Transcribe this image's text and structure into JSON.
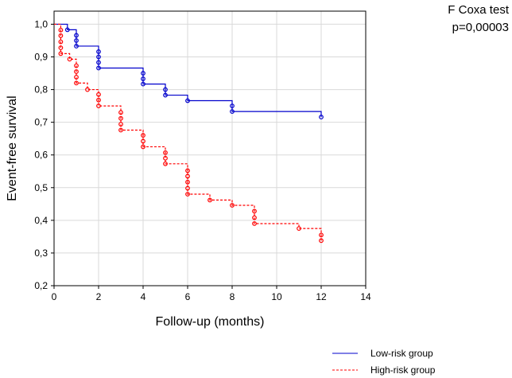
{
  "chart_data": {
    "type": "line",
    "title": "",
    "xlabel": "Follow-up (months)",
    "ylabel": "Event-free survival",
    "xlim": [
      0,
      14
    ],
    "ylim": [
      0.2,
      1.04
    ],
    "xticks": [
      0,
      2,
      4,
      6,
      8,
      10,
      12,
      14
    ],
    "yticks": [
      0.2,
      0.3,
      0.4,
      0.5,
      0.6,
      0.7,
      0.8,
      0.9,
      1.0
    ],
    "ytick_labels": [
      "0,2",
      "0,3",
      "0,4",
      "0,5",
      "0,6",
      "0,7",
      "0,8",
      "0,9",
      "1,0"
    ],
    "grid": true,
    "legend_position": "bottom-right",
    "annotation": {
      "test_name": "F Coxa test",
      "p_value": "p=0,00003"
    },
    "series": [
      {
        "name": "Low-risk group",
        "color": "#0000cc",
        "style": "solid",
        "steps": [
          [
            0,
            1.0
          ],
          [
            0.6,
            0.983
          ],
          [
            1.0,
            0.933
          ],
          [
            2.0,
            0.866
          ],
          [
            4.0,
            0.817
          ],
          [
            5.0,
            0.783
          ],
          [
            6.0,
            0.766
          ],
          [
            8.0,
            0.733
          ],
          [
            12.0,
            0.716
          ]
        ],
        "censored": [
          [
            0.6,
            0.983
          ],
          [
            1.0,
            0.966
          ],
          [
            1.0,
            0.95
          ],
          [
            1.0,
            0.933
          ],
          [
            2.0,
            0.916
          ],
          [
            2.0,
            0.9
          ],
          [
            2.0,
            0.883
          ],
          [
            2.0,
            0.866
          ],
          [
            4.0,
            0.85
          ],
          [
            4.0,
            0.833
          ],
          [
            4.0,
            0.817
          ],
          [
            5.0,
            0.8
          ],
          [
            5.0,
            0.783
          ],
          [
            6.0,
            0.766
          ],
          [
            8.0,
            0.75
          ],
          [
            8.0,
            0.733
          ],
          [
            12.0,
            0.716
          ]
        ]
      },
      {
        "name": "High-risk group",
        "color": "#ff0000",
        "style": "dashed",
        "steps": [
          [
            0,
            1.0
          ],
          [
            0.3,
            0.91
          ],
          [
            0.7,
            0.893
          ],
          [
            1.0,
            0.82
          ],
          [
            1.5,
            0.8
          ],
          [
            2.0,
            0.75
          ],
          [
            3.0,
            0.676
          ],
          [
            4.0,
            0.625
          ],
          [
            5.0,
            0.573
          ],
          [
            6.0,
            0.48
          ],
          [
            7.0,
            0.462
          ],
          [
            8.0,
            0.446
          ],
          [
            9.0,
            0.39
          ],
          [
            11.0,
            0.375
          ],
          [
            12.0,
            0.338
          ]
        ],
        "censored": [
          [
            0.3,
            0.982
          ],
          [
            0.3,
            0.965
          ],
          [
            0.3,
            0.946
          ],
          [
            0.3,
            0.928
          ],
          [
            0.3,
            0.91
          ],
          [
            0.7,
            0.893
          ],
          [
            1.0,
            0.873
          ],
          [
            1.0,
            0.855
          ],
          [
            1.0,
            0.838
          ],
          [
            1.0,
            0.82
          ],
          [
            1.5,
            0.8
          ],
          [
            2.0,
            0.785
          ],
          [
            2.0,
            0.768
          ],
          [
            2.0,
            0.75
          ],
          [
            3.0,
            0.73
          ],
          [
            3.0,
            0.712
          ],
          [
            3.0,
            0.694
          ],
          [
            3.0,
            0.676
          ],
          [
            4.0,
            0.66
          ],
          [
            4.0,
            0.642
          ],
          [
            4.0,
            0.625
          ],
          [
            5.0,
            0.607
          ],
          [
            5.0,
            0.59
          ],
          [
            5.0,
            0.573
          ],
          [
            6.0,
            0.552
          ],
          [
            6.0,
            0.535
          ],
          [
            6.0,
            0.517
          ],
          [
            6.0,
            0.498
          ],
          [
            6.0,
            0.48
          ],
          [
            7.0,
            0.462
          ],
          [
            8.0,
            0.446
          ],
          [
            9.0,
            0.428
          ],
          [
            9.0,
            0.408
          ],
          [
            9.0,
            0.39
          ],
          [
            11.0,
            0.375
          ],
          [
            12.0,
            0.355
          ],
          [
            12.0,
            0.338
          ]
        ]
      }
    ]
  }
}
